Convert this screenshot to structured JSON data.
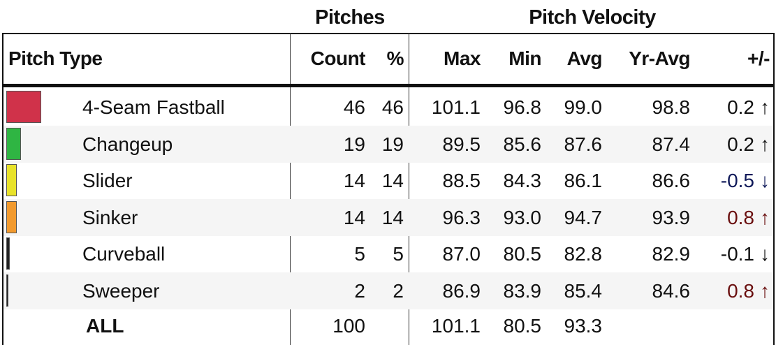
{
  "groups": {
    "pitches": "Pitches",
    "velocity": "Pitch Velocity"
  },
  "columns": {
    "pitch_type": "Pitch Type",
    "count": "Count",
    "pct": "%",
    "max": "Max",
    "min": "Min",
    "avg": "Avg",
    "yr_avg": "Yr-Avg",
    "diff": "+/-"
  },
  "rows": [
    {
      "name": "4-Seam Fastball",
      "color": "#d0324a",
      "bar_fraction": 0.46,
      "count": "46",
      "pct": "46",
      "max": "101.1",
      "min": "96.8",
      "avg": "99.0",
      "yr_avg": "98.8",
      "diff": "0.2",
      "arrow": "↑",
      "diff_color": "#111111"
    },
    {
      "name": "Changeup",
      "color": "#2fb543",
      "bar_fraction": 0.19,
      "count": "19",
      "pct": "19",
      "max": "89.5",
      "min": "85.6",
      "avg": "87.6",
      "yr_avg": "87.4",
      "diff": "0.2",
      "arrow": "↑",
      "diff_color": "#111111"
    },
    {
      "name": "Slider",
      "color": "#e8e22a",
      "bar_fraction": 0.14,
      "count": "14",
      "pct": "14",
      "max": "88.5",
      "min": "84.3",
      "avg": "86.1",
      "yr_avg": "86.6",
      "diff": "-0.5",
      "arrow": "↓",
      "diff_color": "#101a5a"
    },
    {
      "name": "Sinker",
      "color": "#f29a2e",
      "bar_fraction": 0.14,
      "count": "14",
      "pct": "14",
      "max": "96.3",
      "min": "93.0",
      "avg": "94.7",
      "yr_avg": "93.9",
      "diff": "0.8",
      "arrow": "↑",
      "diff_color": "#6a0f0f"
    },
    {
      "name": "Curveball",
      "color": "#222222",
      "bar_fraction": 0.05,
      "count": "5",
      "pct": "5",
      "max": "87.0",
      "min": "80.5",
      "avg": "82.8",
      "yr_avg": "82.9",
      "diff": "-0.1",
      "arrow": "↓",
      "diff_color": "#111111"
    },
    {
      "name": "Sweeper",
      "color": "#222222",
      "bar_fraction": 0.02,
      "count": "2",
      "pct": "2",
      "max": "86.9",
      "min": "83.9",
      "avg": "85.4",
      "yr_avg": "84.6",
      "diff": "0.8",
      "arrow": "↑",
      "diff_color": "#6a0f0f"
    }
  ],
  "total": {
    "name": "ALL",
    "count": "100",
    "max": "101.1",
    "min": "80.5",
    "avg": "93.3"
  }
}
